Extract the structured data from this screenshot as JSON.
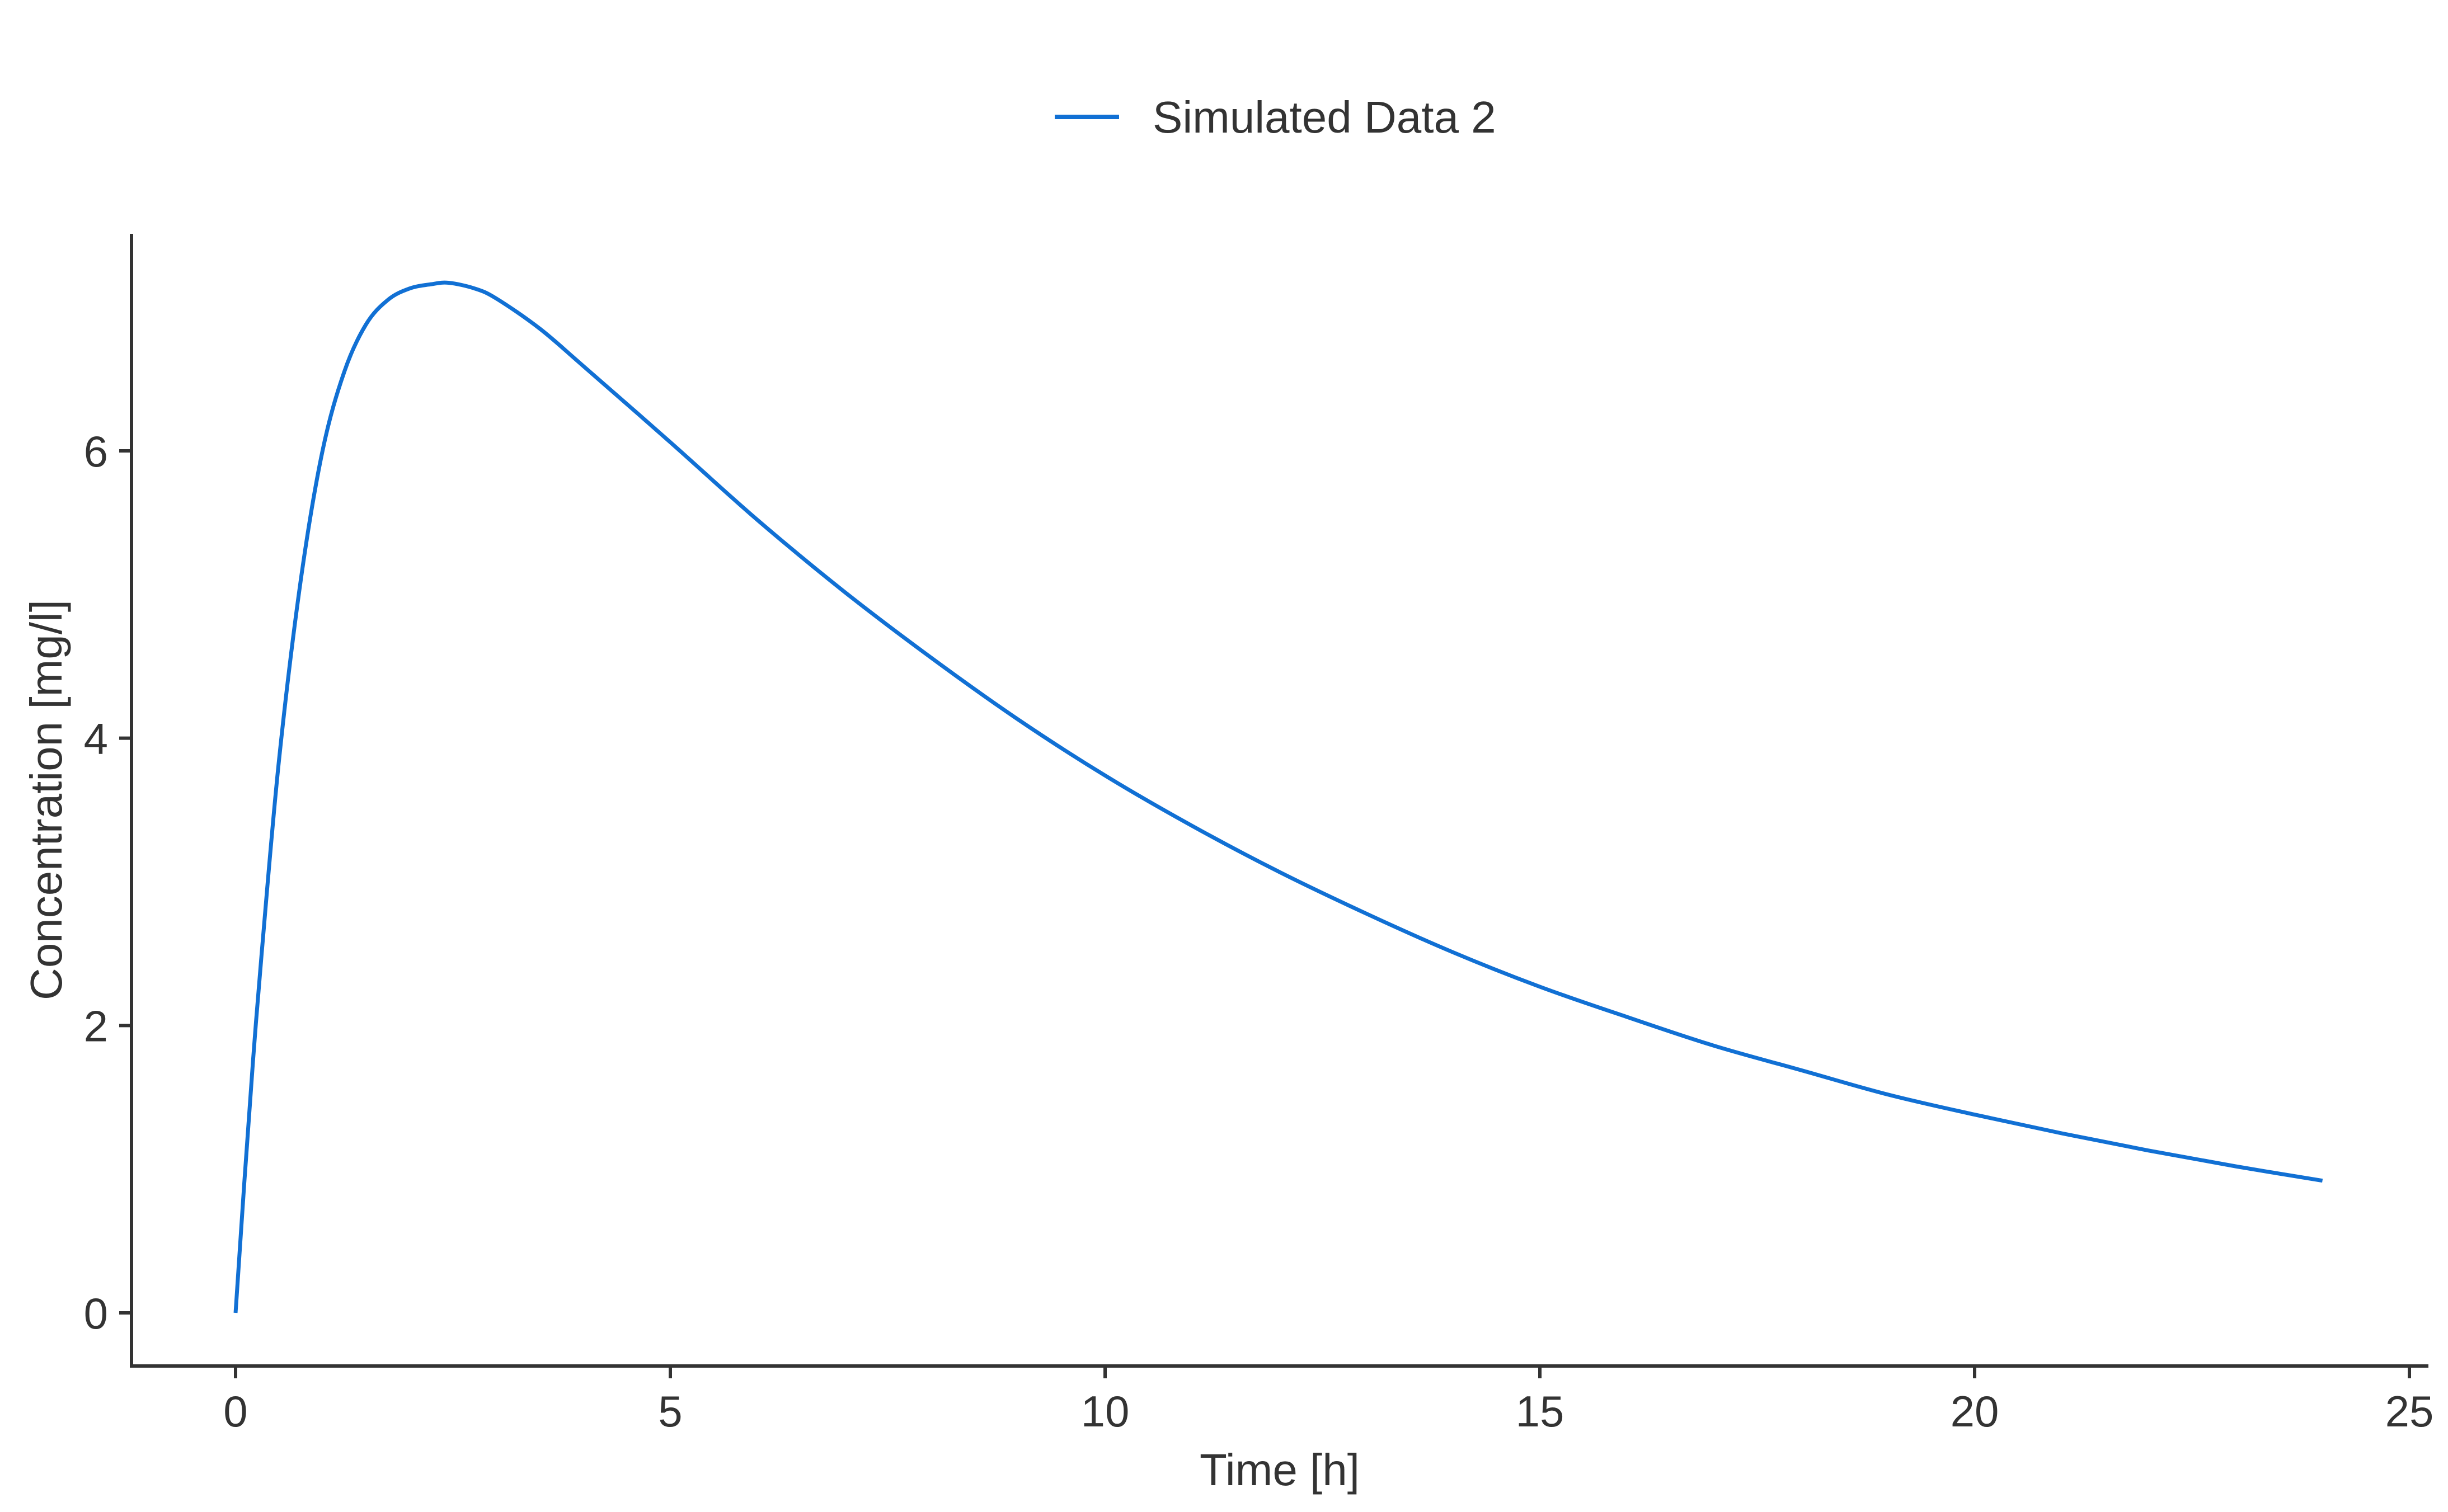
{
  "chart_data": {
    "type": "line",
    "title": "",
    "xlabel": "Time [h]",
    "ylabel": "Concentration [mg/l]",
    "xlim": [
      -1.2,
      25.2
    ],
    "ylim": [
      -0.35,
      7.55
    ],
    "xticks": [
      0,
      5,
      10,
      15,
      20,
      25
    ],
    "yticks": [
      0,
      2,
      4,
      6
    ],
    "grid": false,
    "legend_position": "top-center",
    "series": [
      {
        "name": "Simulated Data 2",
        "color": "#1170d4",
        "x": [
          0,
          0.1,
          0.2,
          0.3,
          0.5,
          0.75,
          1,
          1.25,
          1.5,
          1.75,
          2,
          2.25,
          2.45,
          2.75,
          3,
          3.5,
          4,
          5,
          6,
          7,
          8,
          9,
          10,
          11,
          12,
          13,
          14,
          15,
          16,
          17,
          18,
          19,
          20,
          21,
          22,
          23,
          24
        ],
        "y": [
          0.0,
          0.9,
          1.75,
          2.5,
          3.85,
          5.1,
          6.0,
          6.55,
          6.88,
          7.05,
          7.13,
          7.16,
          7.17,
          7.13,
          7.06,
          6.85,
          6.59,
          6.06,
          5.52,
          5.02,
          4.56,
          4.13,
          3.74,
          3.39,
          3.07,
          2.78,
          2.51,
          2.27,
          2.06,
          1.86,
          1.69,
          1.52,
          1.38,
          1.25,
          1.13,
          1.02,
          0.92
        ]
      }
    ]
  }
}
